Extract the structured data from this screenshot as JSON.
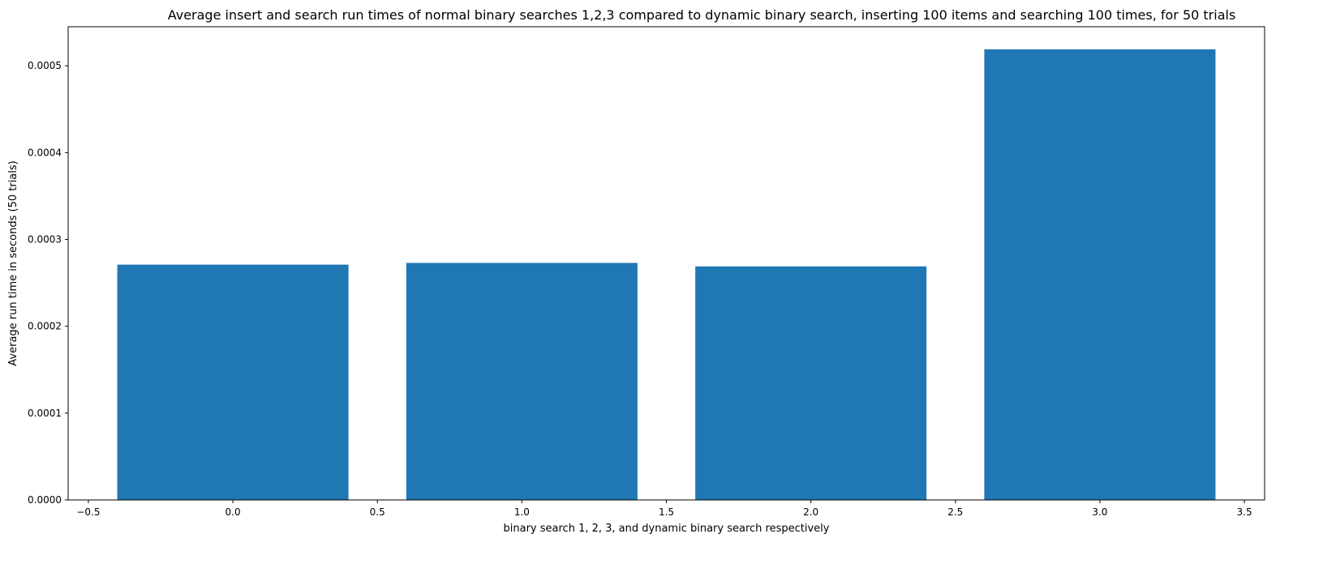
{
  "chart_data": {
    "type": "bar",
    "title": "Average insert and search run times of normal binary searches 1,2,3 compared to dynamic binary search, inserting 100 items and searching 100 times, for 50 trials",
    "xlabel": "binary search 1, 2, 3, and dynamic binary search respectively",
    "ylabel": "Average run time in seconds (50 trials)",
    "x": [
      0,
      1,
      2,
      3
    ],
    "values": [
      0.000271,
      0.000273,
      0.000269,
      0.000519
    ],
    "bar_width": 0.8,
    "xlim": [
      -0.57,
      3.57
    ],
    "ylim": [
      0,
      0.000545
    ],
    "xticks": [
      -0.5,
      0.0,
      0.5,
      1.0,
      1.5,
      2.0,
      2.5,
      3.0,
      3.5
    ],
    "xtick_labels": [
      "−0.5",
      "0.0",
      "0.5",
      "1.0",
      "1.5",
      "2.0",
      "2.5",
      "3.0",
      "3.5"
    ],
    "yticks": [
      0,
      0.0001,
      0.0002,
      0.0003,
      0.0004,
      0.0005
    ],
    "ytick_labels": [
      "0.0000",
      "0.0001",
      "0.0002",
      "0.0003",
      "0.0004",
      "0.0005"
    ],
    "bar_color": "#1f77b4",
    "grid": false,
    "legend": "none"
  }
}
